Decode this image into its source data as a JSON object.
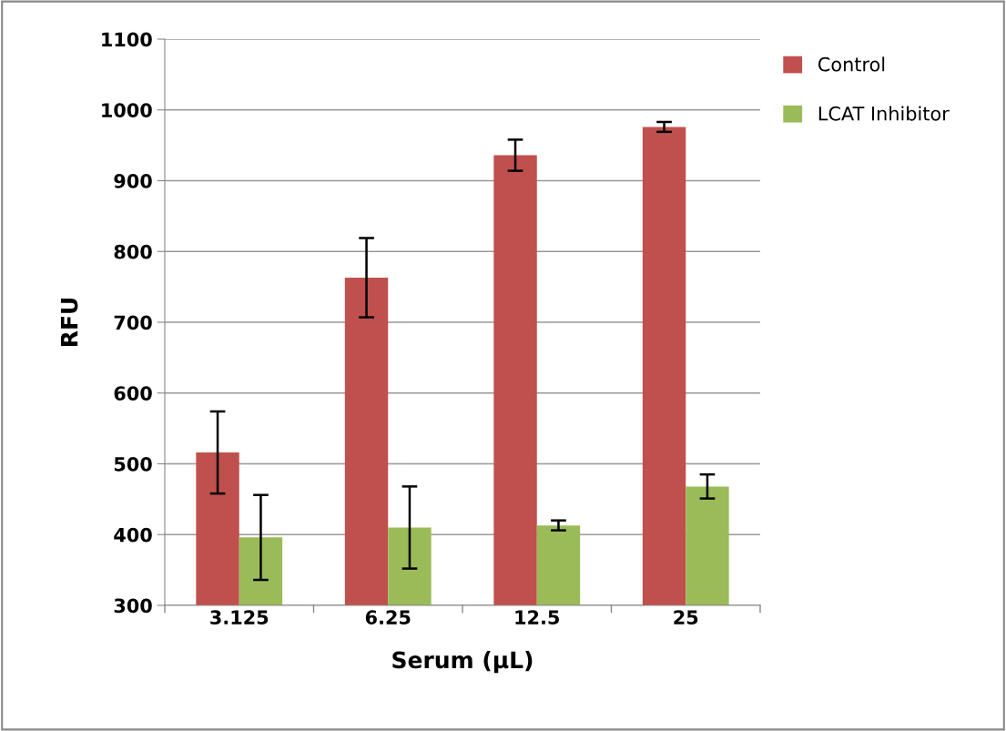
{
  "chart_data": {
    "type": "bar",
    "xlabel": "Serum (µL)",
    "ylabel": "RFU",
    "categories": [
      "3.125",
      "6.25",
      "12.5",
      "25"
    ],
    "series": [
      {
        "name": "Control",
        "color": "#c0504d",
        "values": [
          516,
          763,
          936,
          976
        ],
        "errors": [
          58,
          56,
          22,
          7
        ]
      },
      {
        "name": "LCAT Inhibitor",
        "color": "#9bbb59",
        "values": [
          396,
          410,
          413,
          468
        ],
        "errors": [
          60,
          58,
          7,
          17
        ]
      }
    ],
    "ylim": [
      300,
      1100
    ],
    "yticks": [
      300,
      400,
      500,
      600,
      700,
      800,
      900,
      1000,
      1100
    ],
    "grid": "y",
    "legend": "top right"
  }
}
